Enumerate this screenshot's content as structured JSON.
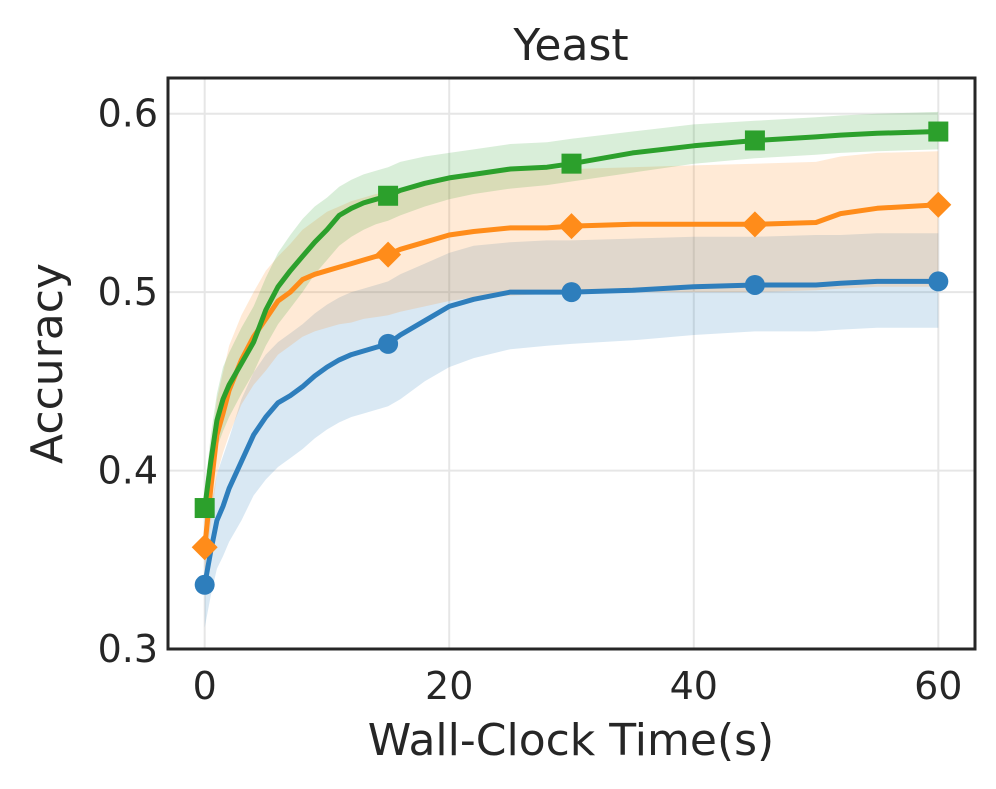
{
  "chart_data": {
    "type": "line",
    "title": "Yeast",
    "xlabel": "Wall-Clock Time(s)",
    "ylabel": "Accuracy",
    "xlim": [
      -3,
      63
    ],
    "ylim": [
      0.3,
      0.62
    ],
    "xticks": [
      0,
      20,
      40,
      60
    ],
    "xtick_labels": [
      "0",
      "20",
      "40",
      "60"
    ],
    "yticks": [
      0.3,
      0.4,
      0.5,
      0.6
    ],
    "ytick_labels": [
      "0.3",
      "0.4",
      "0.5",
      "0.6"
    ],
    "grid": true,
    "x": [
      0,
      0.5,
      1,
      1.5,
      2,
      3,
      4,
      5,
      6,
      7,
      8,
      9,
      10,
      11,
      12,
      13,
      14,
      15,
      16,
      18,
      20,
      22,
      25,
      28,
      30,
      35,
      40,
      45,
      50,
      52,
      55,
      60
    ],
    "series": [
      {
        "name": "blue",
        "color": "#2e7ebc",
        "marker": "circle",
        "values": [
          0.336,
          0.355,
          0.372,
          0.38,
          0.39,
          0.405,
          0.42,
          0.43,
          0.438,
          0.442,
          0.447,
          0.453,
          0.458,
          0.462,
          0.465,
          0.467,
          0.469,
          0.471,
          0.476,
          0.484,
          0.492,
          0.496,
          0.5,
          0.5,
          0.5,
          0.501,
          0.503,
          0.504,
          0.504,
          0.505,
          0.506,
          0.506
        ],
        "lower": [
          0.312,
          0.33,
          0.345,
          0.352,
          0.36,
          0.372,
          0.386,
          0.395,
          0.402,
          0.407,
          0.412,
          0.418,
          0.423,
          0.427,
          0.43,
          0.432,
          0.434,
          0.436,
          0.44,
          0.45,
          0.458,
          0.463,
          0.468,
          0.47,
          0.471,
          0.473,
          0.476,
          0.478,
          0.478,
          0.479,
          0.48,
          0.48
        ],
        "upper": [
          0.36,
          0.38,
          0.398,
          0.408,
          0.418,
          0.44,
          0.455,
          0.465,
          0.472,
          0.477,
          0.482,
          0.488,
          0.493,
          0.497,
          0.5,
          0.502,
          0.504,
          0.506,
          0.51,
          0.516,
          0.522,
          0.526,
          0.528,
          0.529,
          0.529,
          0.53,
          0.531,
          0.531,
          0.532,
          0.532,
          0.533,
          0.533
        ],
        "marker_x": [
          0,
          15,
          30,
          45,
          60
        ],
        "marker_y": [
          0.336,
          0.471,
          0.5,
          0.504,
          0.506
        ]
      },
      {
        "name": "orange",
        "color": "#ff8c1a",
        "marker": "diamond",
        "values": [
          0.357,
          0.39,
          0.42,
          0.432,
          0.445,
          0.462,
          0.475,
          0.485,
          0.495,
          0.5,
          0.507,
          0.51,
          0.512,
          0.514,
          0.516,
          0.518,
          0.52,
          0.521,
          0.524,
          0.528,
          0.532,
          0.534,
          0.536,
          0.536,
          0.537,
          0.538,
          0.538,
          0.538,
          0.539,
          0.544,
          0.547,
          0.549
        ],
        "lower": [
          0.343,
          0.37,
          0.398,
          0.41,
          0.42,
          0.437,
          0.448,
          0.456,
          0.465,
          0.47,
          0.475,
          0.478,
          0.48,
          0.482,
          0.483,
          0.485,
          0.486,
          0.487,
          0.489,
          0.492,
          0.495,
          0.497,
          0.498,
          0.499,
          0.499,
          0.5,
          0.5,
          0.5,
          0.501,
          0.502,
          0.503,
          0.503
        ],
        "upper": [
          0.371,
          0.41,
          0.44,
          0.455,
          0.47,
          0.487,
          0.5,
          0.512,
          0.52,
          0.527,
          0.535,
          0.54,
          0.545,
          0.548,
          0.551,
          0.553,
          0.555,
          0.556,
          0.558,
          0.561,
          0.564,
          0.566,
          0.568,
          0.569,
          0.569,
          0.57,
          0.571,
          0.572,
          0.573,
          0.576,
          0.578,
          0.579
        ],
        "marker_x": [
          0,
          15,
          30,
          45,
          60
        ],
        "marker_y": [
          0.357,
          0.521,
          0.537,
          0.538,
          0.549
        ]
      },
      {
        "name": "green",
        "color": "#2ca02c",
        "marker": "square",
        "values": [
          0.379,
          0.405,
          0.428,
          0.44,
          0.448,
          0.46,
          0.472,
          0.49,
          0.503,
          0.512,
          0.52,
          0.528,
          0.535,
          0.543,
          0.547,
          0.55,
          0.552,
          0.554,
          0.557,
          0.561,
          0.564,
          0.566,
          0.569,
          0.57,
          0.572,
          0.578,
          0.582,
          0.585,
          0.587,
          0.588,
          0.589,
          0.59
        ],
        "lower": [
          0.37,
          0.39,
          0.413,
          0.422,
          0.43,
          0.443,
          0.455,
          0.47,
          0.482,
          0.491,
          0.5,
          0.51,
          0.518,
          0.526,
          0.531,
          0.535,
          0.538,
          0.54,
          0.543,
          0.548,
          0.552,
          0.555,
          0.558,
          0.56,
          0.562,
          0.567,
          0.572,
          0.575,
          0.577,
          0.578,
          0.579,
          0.58
        ],
        "upper": [
          0.388,
          0.42,
          0.443,
          0.458,
          0.466,
          0.48,
          0.492,
          0.508,
          0.522,
          0.532,
          0.541,
          0.548,
          0.553,
          0.559,
          0.563,
          0.566,
          0.568,
          0.57,
          0.573,
          0.576,
          0.578,
          0.58,
          0.583,
          0.584,
          0.586,
          0.59,
          0.594,
          0.596,
          0.598,
          0.599,
          0.6,
          0.601
        ],
        "marker_x": [
          0,
          15,
          30,
          45,
          60
        ],
        "marker_y": [
          0.379,
          0.554,
          0.572,
          0.585,
          0.59
        ]
      }
    ]
  }
}
